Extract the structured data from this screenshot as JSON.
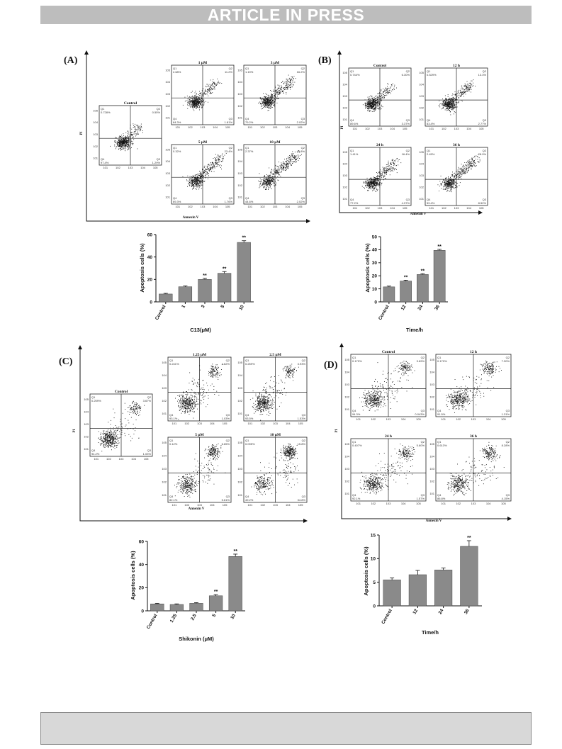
{
  "banner": "ARTICLE IN PRESS",
  "panels": [
    {
      "letter": "(A)",
      "yaxis": "PI",
      "xaxis": "Annexin V",
      "plots": [
        {
          "title": "Control",
          "q1": "0.728%",
          "q2": "0.55%",
          "q3": "1.29%",
          "q4": "97.4%"
        },
        {
          "title": "1 μM",
          "q1": "2.68%",
          "q2": "11.2%",
          "q3": "1.81%",
          "q4": "84.3%"
        },
        {
          "title": "3 μM",
          "q1": "1.19%",
          "q2": "16.2%",
          "q3": "2.02%",
          "q4": "79.2%"
        },
        {
          "title": "5 μM",
          "q1": "0.32%",
          "q2": "23.4%",
          "q3": "1.76%",
          "q4": "69.3%"
        },
        {
          "title": "10 μM",
          "q1": "2.37%",
          "q2": "49.8%",
          "q3": "2.02%",
          "q4": "44.6%"
        }
      ]
    },
    {
      "letter": "(B)",
      "yaxis": "PI",
      "xaxis": "Annexin V",
      "plots": [
        {
          "title": "Control",
          "q1": "0.744%",
          "q2": "6.30%",
          "q3": "3.37%",
          "q4": "89.6%"
        },
        {
          "title": "12 h",
          "q1": "0.529%",
          "q2": "13.3%",
          "q3": "2.77%",
          "q4": "83.4%"
        },
        {
          "title": "24 h",
          "q1": "1.41%",
          "q2": "16.4%",
          "q3": "4.97%",
          "q4": "77.2%"
        },
        {
          "title": "36 h",
          "q1": "2.45%",
          "q2": "28.9%",
          "q3": "8.52%",
          "q4": "59.4%"
        }
      ]
    },
    {
      "letter": "(C)",
      "yaxis": "PI",
      "xaxis": "Annexin V",
      "plots": [
        {
          "title": "Control",
          "q1": "0.259%",
          "q2": "3.67%",
          "q3": "1.03%",
          "q4": "94.2%"
        },
        {
          "title": "1.25 μM",
          "q1": "0.241%",
          "q2": "4.62%",
          "q3": "1.03%",
          "q4": "93.1%"
        },
        {
          "title": "2.5 μM",
          "q1": "0.259%",
          "q2": "3.93%",
          "q3": "1.53%",
          "q4": "93.5%"
        },
        {
          "title": "5 μM",
          "q1": "0.12%",
          "q2": "6.65%",
          "q3": "5.61%",
          "q4": "82.1%"
        },
        {
          "title": "10 μM",
          "q1": "0.095%",
          "q2": "15.8%",
          "q3": "34.8%",
          "q4": "49.2%"
        }
      ]
    },
    {
      "letter": "(D)",
      "yaxis": "PI",
      "xaxis": "Annexin V",
      "plots": [
        {
          "title": "Control",
          "q1": "0.179%",
          "q2": "3.69%",
          "q3": "0.043%",
          "q4": "94.3%"
        },
        {
          "title": "12 h",
          "q1": "0.170%",
          "q2": "7.30%",
          "q3": "1.31%",
          "q4": "91.5%"
        },
        {
          "title": "24 h",
          "q1": "0.407%",
          "q2": "5.60%",
          "q3": "1.57%",
          "q4": "92.1%"
        },
        {
          "title": "36 h",
          "q1": "0.613%",
          "q2": "8.28%",
          "q3": "4.15%",
          "q4": "86.8%"
        }
      ]
    }
  ],
  "chart_data": [
    {
      "type": "bar",
      "categories": [
        "Control",
        "1",
        "3",
        "5",
        "10"
      ],
      "values": [
        7,
        13.5,
        20,
        25.5,
        53
      ],
      "errors": [
        0.6,
        0.7,
        1,
        1.5,
        1.5
      ],
      "significance": [
        "",
        "",
        "**",
        "**",
        "**"
      ],
      "ylabel": "Apoptosis cells (%)",
      "xlabel": "C13(μM)",
      "yticks": [
        0,
        20,
        40,
        60
      ],
      "ylim": [
        0,
        60
      ]
    },
    {
      "type": "bar",
      "categories": [
        "Control",
        "12",
        "24",
        "36"
      ],
      "values": [
        11.5,
        16,
        21,
        39.5
      ],
      "errors": [
        0.6,
        0.6,
        0.6,
        0.8
      ],
      "significance": [
        "",
        "**",
        "**",
        "**"
      ],
      "ylabel": "Apoptosis cells (%)",
      "xlabel": "Time/h",
      "yticks": [
        0,
        10,
        20,
        30,
        40,
        50
      ],
      "ylim": [
        0,
        50
      ]
    },
    {
      "type": "bar",
      "categories": [
        "Control",
        "1.25",
        "2.5",
        "5",
        "10"
      ],
      "values": [
        6,
        5.5,
        6.5,
        13,
        47
      ],
      "errors": [
        0.5,
        0.5,
        0.6,
        1,
        2
      ],
      "significance": [
        "",
        "",
        "",
        "**",
        "**"
      ],
      "ylabel": "Apoptosis cells (%)",
      "xlabel": "Shikonin (μM)",
      "yticks": [
        0,
        20,
        40,
        60
      ],
      "ylim": [
        0,
        60
      ]
    },
    {
      "type": "bar",
      "categories": [
        "Control",
        "12",
        "24",
        "36"
      ],
      "values": [
        5.5,
        6.6,
        7.6,
        12.6
      ],
      "errors": [
        0.4,
        0.9,
        0.4,
        1.2
      ],
      "significance": [
        "",
        "",
        "",
        "**"
      ],
      "ylabel": "Apoptosis cells (%)",
      "xlabel": "Time/h",
      "yticks": [
        0,
        5,
        10,
        15
      ],
      "ylim": [
        0,
        15
      ]
    }
  ],
  "colors": {
    "banner": "#bdbdbd",
    "bar": "#8a8a8a",
    "footer": "#d8d8d8"
  }
}
